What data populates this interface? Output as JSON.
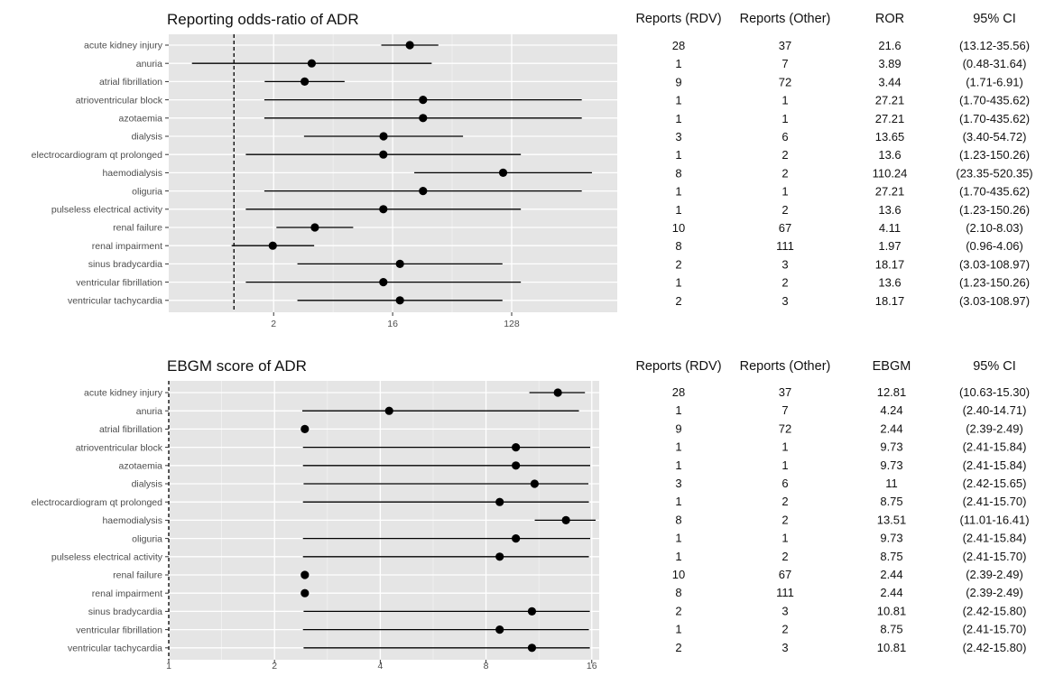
{
  "colors": {
    "panel_bg": "#e5e5e5",
    "grid_major": "#ffffff",
    "grid_minor": "#f2f2f2",
    "point": "#000000",
    "ref_line": "#000000"
  },
  "table_headers": {
    "ror": [
      "Reports (RDV)",
      "Reports (Other)",
      "ROR",
      "95% CI"
    ],
    "ebgm": [
      "Reports (RDV)",
      "Reports (Other)",
      "EBGM",
      "95% CI"
    ]
  },
  "chart_data": [
    {
      "type": "scatter",
      "title": "Reporting odds-ratio of ADR",
      "xscale": "log2",
      "xlim": [
        0.32,
        810
      ],
      "reference_line": 1,
      "xticks": [
        2,
        16,
        128
      ],
      "xtick_labels": [
        "2",
        "16",
        "128"
      ],
      "grid": true,
      "categories": [
        "acute kidney injury",
        "anuria",
        "atrial fibrillation",
        "atrioventricular block",
        "azotaemia",
        "dialysis",
        "electrocardiogram qt prolonged",
        "haemodialysis",
        "oliguria",
        "pulseless electrical activity",
        "renal failure",
        "renal impairment",
        "sinus bradycardia",
        "ventricular fibrillation",
        "ventricular tachycardia"
      ],
      "values": [
        21.6,
        3.89,
        3.44,
        27.21,
        27.21,
        13.65,
        13.6,
        110.24,
        27.21,
        13.6,
        4.11,
        1.97,
        18.17,
        13.6,
        18.17
      ],
      "lower": [
        13.12,
        0.48,
        1.71,
        1.7,
        1.7,
        3.4,
        1.23,
        23.35,
        1.7,
        1.23,
        2.1,
        0.96,
        3.03,
        1.23,
        3.03
      ],
      "upper": [
        35.56,
        31.64,
        6.91,
        435.62,
        435.62,
        54.72,
        150.26,
        520.35,
        435.62,
        150.26,
        8.03,
        4.06,
        108.97,
        150.26,
        108.97
      ],
      "table": [
        [
          "28",
          "37",
          "21.6",
          "(13.12-35.56)"
        ],
        [
          "1",
          "7",
          "3.89",
          "(0.48-31.64)"
        ],
        [
          "9",
          "72",
          "3.44",
          "(1.71-6.91)"
        ],
        [
          "1",
          "1",
          "27.21",
          "(1.70-435.62)"
        ],
        [
          "1",
          "1",
          "27.21",
          "(1.70-435.62)"
        ],
        [
          "3",
          "6",
          "13.65",
          "(3.40-54.72)"
        ],
        [
          "1",
          "2",
          "13.6",
          "(1.23-150.26)"
        ],
        [
          "8",
          "2",
          "110.24",
          "(23.35-520.35)"
        ],
        [
          "1",
          "1",
          "27.21",
          "(1.70-435.62)"
        ],
        [
          "1",
          "2",
          "13.6",
          "(1.23-150.26)"
        ],
        [
          "10",
          "67",
          "4.11",
          "(2.10-8.03)"
        ],
        [
          "8",
          "111",
          "1.97",
          "(0.96-4.06)"
        ],
        [
          "2",
          "3",
          "18.17",
          "(3.03-108.97)"
        ],
        [
          "1",
          "2",
          "13.6",
          "(1.23-150.26)"
        ],
        [
          "2",
          "3",
          "18.17",
          "(3.03-108.97)"
        ]
      ]
    },
    {
      "type": "scatter",
      "title": "EBGM score of ADR",
      "xscale": "log2",
      "xlim": [
        1,
        16.8
      ],
      "reference_line": 1,
      "xticks": [
        1,
        2,
        4,
        8,
        16
      ],
      "xtick_labels": [
        "1",
        "2",
        "4",
        "8",
        "16"
      ],
      "grid": true,
      "categories": [
        "acute kidney injury",
        "anuria",
        "atrial fibrillation",
        "atrioventricular block",
        "azotaemia",
        "dialysis",
        "electrocardiogram qt prolonged",
        "haemodialysis",
        "oliguria",
        "pulseless electrical activity",
        "renal failure",
        "renal impairment",
        "sinus bradycardia",
        "ventricular fibrillation",
        "ventricular tachycardia"
      ],
      "values": [
        12.81,
        4.24,
        2.44,
        9.73,
        9.73,
        11,
        8.75,
        13.51,
        9.73,
        8.75,
        2.44,
        2.44,
        10.81,
        8.75,
        10.81
      ],
      "lower": [
        10.63,
        2.4,
        2.39,
        2.41,
        2.41,
        2.42,
        2.41,
        11.01,
        2.41,
        2.41,
        2.39,
        2.39,
        2.42,
        2.41,
        2.42
      ],
      "upper": [
        15.3,
        14.71,
        2.49,
        15.84,
        15.84,
        15.65,
        15.7,
        16.41,
        15.84,
        15.7,
        2.49,
        2.49,
        15.8,
        15.7,
        15.8
      ],
      "table": [
        [
          "28",
          "37",
          "12.81",
          "(10.63-15.30)"
        ],
        [
          "1",
          "7",
          "4.24",
          "(2.40-14.71)"
        ],
        [
          "9",
          "72",
          "2.44",
          "(2.39-2.49)"
        ],
        [
          "1",
          "1",
          "9.73",
          "(2.41-15.84)"
        ],
        [
          "1",
          "1",
          "9.73",
          "(2.41-15.84)"
        ],
        [
          "3",
          "6",
          "11",
          "(2.42-15.65)"
        ],
        [
          "1",
          "2",
          "8.75",
          "(2.41-15.70)"
        ],
        [
          "8",
          "2",
          "13.51",
          "(11.01-16.41)"
        ],
        [
          "1",
          "1",
          "9.73",
          "(2.41-15.84)"
        ],
        [
          "1",
          "2",
          "8.75",
          "(2.41-15.70)"
        ],
        [
          "10",
          "67",
          "2.44",
          "(2.39-2.49)"
        ],
        [
          "8",
          "111",
          "2.44",
          "(2.39-2.49)"
        ],
        [
          "2",
          "3",
          "10.81",
          "(2.42-15.80)"
        ],
        [
          "1",
          "2",
          "8.75",
          "(2.41-15.70)"
        ],
        [
          "2",
          "3",
          "10.81",
          "(2.42-15.80)"
        ]
      ]
    }
  ]
}
